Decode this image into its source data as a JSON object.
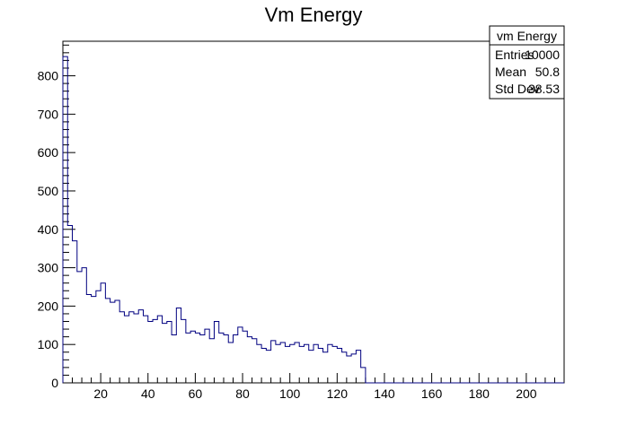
{
  "chart_data": {
    "type": "histogram",
    "title": "Vm Energy",
    "xlabel": "",
    "ylabel": "",
    "xlim": [
      4,
      216
    ],
    "ylim": [
      0,
      890
    ],
    "bin_width": 2,
    "x_start": 4,
    "x_ticks": [
      20,
      40,
      60,
      80,
      100,
      120,
      140,
      160,
      180,
      200
    ],
    "y_ticks": [
      0,
      100,
      200,
      300,
      400,
      500,
      600,
      700,
      800
    ],
    "line_color": "#000080",
    "values": [
      850,
      410,
      370,
      290,
      300,
      230,
      225,
      240,
      260,
      220,
      210,
      215,
      185,
      175,
      185,
      180,
      190,
      175,
      160,
      165,
      175,
      155,
      160,
      125,
      195,
      165,
      130,
      135,
      130,
      125,
      140,
      115,
      160,
      130,
      125,
      105,
      125,
      145,
      135,
      120,
      115,
      100,
      90,
      85,
      110,
      100,
      105,
      95,
      100,
      105,
      95,
      100,
      85,
      100,
      90,
      80,
      100,
      95,
      90,
      80,
      70,
      75,
      85,
      40,
      0,
      0,
      0,
      0,
      0,
      0,
      0,
      0,
      0,
      0,
      0,
      0,
      0,
      0,
      0,
      0,
      0,
      0,
      0,
      0,
      0,
      0,
      0,
      0,
      0,
      0,
      0,
      0,
      0,
      0,
      0,
      0,
      0,
      0,
      0,
      0,
      0,
      0,
      0,
      0,
      0,
      0
    ],
    "grid": false
  },
  "stats": {
    "name": "vm Energy",
    "rows": [
      {
        "label": "Entries",
        "value": "10000"
      },
      {
        "label": "Mean",
        "value": "50.8"
      },
      {
        "label": "Std Dev",
        "value": "38.53"
      }
    ]
  }
}
